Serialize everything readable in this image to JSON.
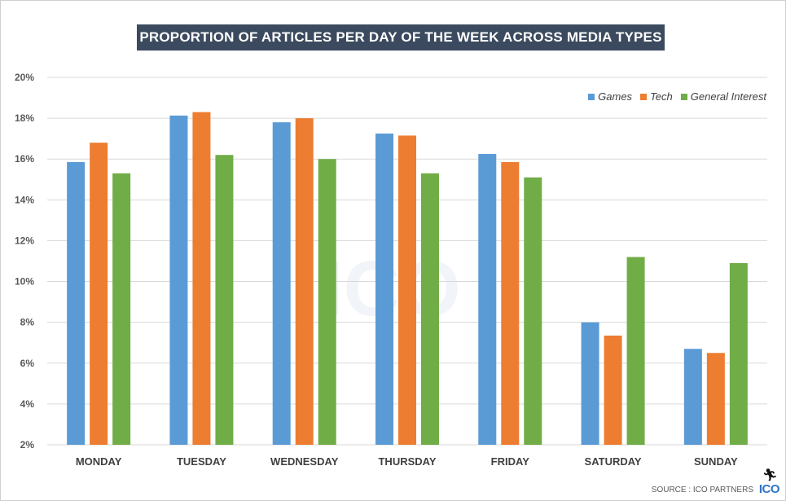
{
  "chart_data": {
    "type": "bar",
    "title": "PROPORTION OF ARTICLES PER DAY OF THE WEEK ACROSS MEDIA TYPES",
    "categories": [
      "MONDAY",
      "TUESDAY",
      "WEDNESDAY",
      "THURSDAY",
      "FRIDAY",
      "SATURDAY",
      "SUNDAY"
    ],
    "series": [
      {
        "name": "Games",
        "color": "#5b9bd5",
        "values": [
          15.85,
          18.13,
          17.8,
          17.25,
          16.25,
          8.0,
          6.7
        ]
      },
      {
        "name": "Tech",
        "color": "#ed7d31",
        "values": [
          16.8,
          18.3,
          18.0,
          17.15,
          15.85,
          7.35,
          6.5
        ]
      },
      {
        "name": "General Interest",
        "color": "#70ad47",
        "values": [
          15.3,
          16.2,
          16.0,
          15.3,
          15.1,
          11.2,
          10.9
        ]
      }
    ],
    "yticks": [
      "2%",
      "4%",
      "6%",
      "8%",
      "10%",
      "12%",
      "14%",
      "16%",
      "18%",
      "20%"
    ],
    "ylim": [
      2,
      20
    ],
    "xlabel": "",
    "ylabel": "",
    "grid": true,
    "legend": "top-right"
  },
  "source": "SOURCE : ICO PARTNERS",
  "logo": "ICO"
}
